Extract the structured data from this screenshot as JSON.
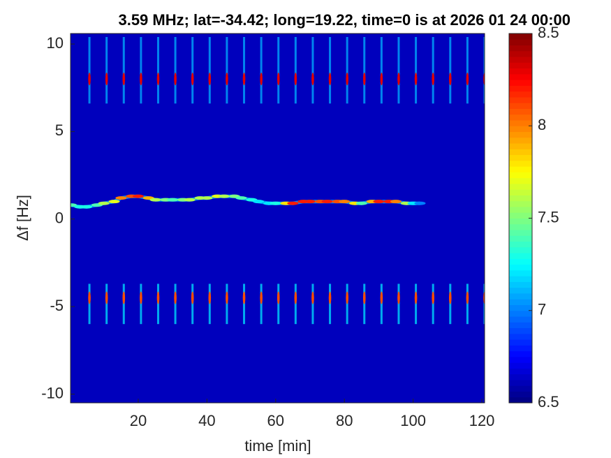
{
  "chart_data": {
    "type": "spectrogram",
    "title": "3.59 MHz;  lat=-34.42; long=19.22, time=0 is at 2026 01 24 00:00",
    "xlabel": "time [min]",
    "ylabel": "Δf [Hz]",
    "xlim": [
      0.3,
      120.8
    ],
    "ylim": [
      -10.5,
      10.6
    ],
    "xticks": [
      20,
      40,
      60,
      80,
      100,
      120
    ],
    "yticks": [
      -10,
      -5,
      0,
      5,
      10
    ],
    "colormap": "jet",
    "clim": [
      6.5,
      8.5
    ],
    "cticks": [
      6.5,
      7,
      7.5,
      8,
      8.5
    ],
    "background_level": 6.62,
    "pulses": {
      "times": [
        5.8,
        10.8,
        15.8,
        20.8,
        25.8,
        30.8,
        35.8,
        40.8,
        45.8,
        50.8,
        55.8,
        60.8,
        65.8,
        70.8,
        75.8,
        80.8,
        85.8,
        90.8,
        95.8,
        100.8,
        105.8,
        110.8,
        115.8,
        120.8
      ],
      "bands": [
        {
          "center": 8,
          "low": 6.6,
          "high": 10.4,
          "level": 8.3,
          "edge_level": 7.1
        },
        {
          "center": -4.5,
          "low": -6.0,
          "high": -3.7,
          "level": 8.1,
          "edge_level": 7.2
        }
      ]
    },
    "trace": {
      "x": [
        0.5,
        3,
        5,
        8,
        10,
        13,
        15,
        18,
        20,
        23,
        25,
        28,
        30,
        33,
        35,
        38,
        40,
        43,
        45,
        48,
        50,
        53,
        55,
        58,
        60,
        63,
        65,
        68,
        70,
        73,
        75,
        78,
        80,
        83,
        85,
        88,
        90,
        93,
        95,
        98,
        100,
        102
      ],
      "y": [
        0.8,
        0.7,
        0.7,
        0.8,
        0.9,
        1.0,
        1.2,
        1.3,
        1.3,
        1.2,
        1.1,
        1.1,
        1.1,
        1.1,
        1.1,
        1.2,
        1.2,
        1.3,
        1.3,
        1.3,
        1.2,
        1.1,
        1.0,
        0.9,
        0.9,
        0.9,
        0.9,
        1.0,
        1.0,
        1.0,
        1.0,
        1.0,
        1.0,
        0.9,
        0.9,
        1.0,
        1.0,
        1.0,
        1.0,
        0.9,
        0.9,
        0.9
      ],
      "levels": [
        7.4,
        7.3,
        7.3,
        7.4,
        7.6,
        7.7,
        8.0,
        8.1,
        8.2,
        7.9,
        7.6,
        7.5,
        7.4,
        7.5,
        7.6,
        7.6,
        7.6,
        7.7,
        7.6,
        7.5,
        7.4,
        7.3,
        7.2,
        7.2,
        7.3,
        7.8,
        8.2,
        8.2,
        8.2,
        8.1,
        8.2,
        8.1,
        8.0,
        7.8,
        7.4,
        7.9,
        8.2,
        8.2,
        8.0,
        7.6,
        7.2,
        7.0
      ]
    }
  }
}
